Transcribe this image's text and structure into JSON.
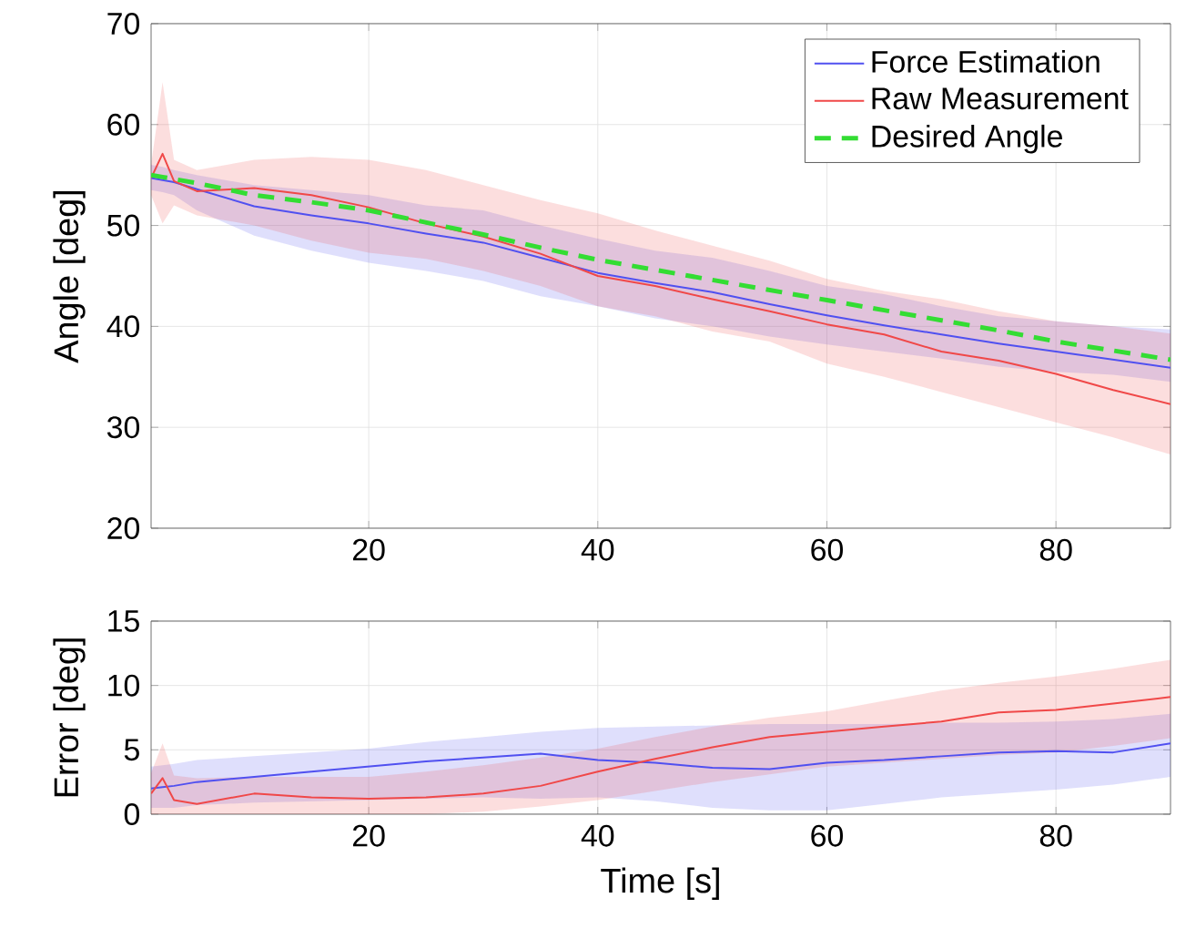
{
  "chart_data": [
    {
      "type": "line",
      "ylabel": "Angle [deg]",
      "xlim": [
        1,
        90
      ],
      "ylim": [
        20,
        70
      ],
      "xticks": [
        20,
        40,
        60,
        80
      ],
      "yticks": [
        20,
        30,
        40,
        50,
        60,
        70
      ],
      "grid": true,
      "legend": "top right",
      "x": [
        1,
        2,
        3,
        5,
        10,
        15,
        20,
        25,
        30,
        35,
        40,
        45,
        50,
        55,
        60,
        65,
        70,
        75,
        80,
        85,
        90
      ],
      "series": [
        {
          "name": "Force Estimation",
          "color": "#5050f0",
          "values": [
            54.7,
            54.5,
            54.3,
            53.6,
            51.9,
            51.0,
            50.2,
            49.2,
            48.3,
            46.8,
            45.3,
            44.3,
            43.4,
            42.2,
            41.1,
            40.1,
            39.2,
            38.3,
            37.5,
            36.7,
            35.9
          ],
          "lower": [
            53.5,
            53.3,
            53,
            51.5,
            49,
            47.5,
            46.3,
            45.5,
            44.5,
            43,
            42,
            40.8,
            40,
            39,
            38.2,
            37.5,
            36.8,
            36,
            35.5,
            35.2,
            34.5
          ],
          "upper": [
            56,
            55.8,
            55.5,
            55,
            54,
            53.5,
            53,
            52,
            51.5,
            50,
            48.7,
            47.5,
            46.8,
            45.5,
            44,
            43.2,
            42,
            41,
            40.5,
            40,
            39.7
          ]
        },
        {
          "name": "Raw Measurement",
          "color": "#f04848",
          "values": [
            54.7,
            57.1,
            54.4,
            53.4,
            53.7,
            53.0,
            51.8,
            50.2,
            48.9,
            47.2,
            45.0,
            44.0,
            42.7,
            41.5,
            40.2,
            39.2,
            37.5,
            36.6,
            35.3,
            33.7,
            32.3
          ],
          "lower": [
            53,
            50.2,
            52,
            51,
            50,
            48.5,
            47.3,
            46.7,
            45.5,
            44,
            42,
            41,
            39.5,
            38.5,
            36.3,
            35,
            33.5,
            32,
            30.5,
            29,
            27.3
          ],
          "upper": [
            56,
            64.2,
            56.5,
            55.5,
            56.5,
            56.8,
            56.5,
            55.5,
            54,
            52.5,
            51.2,
            49.5,
            48,
            46.5,
            44.7,
            43.5,
            42.7,
            41.5,
            40.5,
            40,
            39.3
          ]
        },
        {
          "name": "Desired Angle",
          "color": "#33dd33",
          "line_style": "dashed",
          "values": [
            55.0,
            54.8,
            54.6,
            54.2,
            53.0,
            52.3,
            51.5,
            50.3,
            49.1,
            47.8,
            46.6,
            45.6,
            44.6,
            43.6,
            42.6,
            41.6,
            40.6,
            39.6,
            38.5,
            37.6,
            36.7
          ]
        }
      ]
    },
    {
      "type": "line",
      "xlabel": "Time [s]",
      "ylabel": "Error [deg]",
      "xlim": [
        1,
        90
      ],
      "ylim": [
        0,
        15
      ],
      "xticks": [
        20,
        40,
        60,
        80
      ],
      "yticks": [
        0,
        5,
        10,
        15
      ],
      "grid": true,
      "x": [
        1,
        2,
        3,
        5,
        10,
        15,
        20,
        25,
        30,
        35,
        40,
        45,
        50,
        55,
        60,
        65,
        70,
        75,
        80,
        85,
        90
      ],
      "series": [
        {
          "color": "#5050f0",
          "values": [
            2.0,
            2.1,
            2.2,
            2.5,
            2.9,
            3.3,
            3.7,
            4.1,
            4.4,
            4.7,
            4.2,
            4.0,
            3.6,
            3.5,
            4.0,
            4.2,
            4.5,
            4.8,
            4.9,
            4.8,
            5.5
          ],
          "lower": [
            0.5,
            0.5,
            0.5,
            0.7,
            0.9,
            1.0,
            1.1,
            1.2,
            1.3,
            1.2,
            1.3,
            1.0,
            0.5,
            0.3,
            0.3,
            0.8,
            1.3,
            1.6,
            1.9,
            2.3,
            2.9
          ],
          "upper": [
            3.7,
            3.8,
            3.9,
            4.2,
            4.5,
            4.8,
            5.1,
            5.6,
            6.0,
            6.4,
            6.7,
            6.8,
            6.9,
            7.0,
            7.0,
            7.0,
            7.1,
            7.1,
            7.2,
            7.4,
            7.8
          ]
        },
        {
          "color": "#f04848",
          "values": [
            1.6,
            2.8,
            1.1,
            0.8,
            1.6,
            1.3,
            1.2,
            1.3,
            1.6,
            2.2,
            3.3,
            4.3,
            5.2,
            6.0,
            6.4,
            6.8,
            7.2,
            7.9,
            8.1,
            8.6,
            9.1
          ],
          "lower": [
            0,
            0,
            0,
            0,
            0,
            0,
            0,
            0,
            0.2,
            0.6,
            1.1,
            1.8,
            2.5,
            3.1,
            3.7,
            4.0,
            4.3,
            4.6,
            4.8,
            5.3,
            5.9
          ],
          "upper": [
            3.2,
            5.5,
            3.0,
            2.8,
            2.9,
            2.9,
            2.9,
            3.3,
            3.8,
            4.4,
            5.1,
            6.0,
            6.8,
            7.5,
            8.0,
            8.8,
            9.6,
            10.2,
            10.7,
            11.3,
            12.0
          ]
        }
      ]
    }
  ]
}
